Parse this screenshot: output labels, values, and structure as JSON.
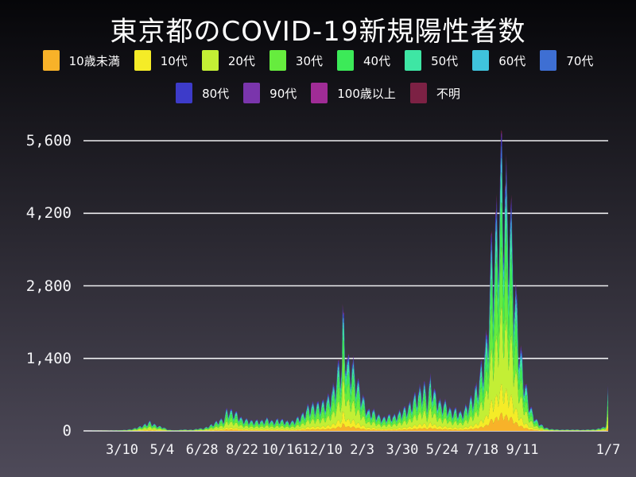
{
  "title": "東京都のCOVID-19新規陽性者数",
  "chart_data": {
    "type": "area",
    "stacked": true,
    "title": "東京都のCOVID-19新規陽性者数",
    "grid": "horizontal",
    "legend_position": "top-two-rows",
    "legend_rows": [
      8,
      4
    ],
    "ylim": [
      0,
      6000
    ],
    "y_ticks": [
      {
        "value": 0,
        "label": "0"
      },
      {
        "value": 1400,
        "label": "1,400"
      },
      {
        "value": 2800,
        "label": "2,800"
      },
      {
        "value": 4200,
        "label": "4,200"
      },
      {
        "value": 5600,
        "label": "5,600"
      }
    ],
    "x_ticks": [
      {
        "label": "3/10",
        "day": 53
      },
      {
        "label": "5/4",
        "day": 108
      },
      {
        "label": "6/28",
        "day": 163
      },
      {
        "label": "8/22",
        "day": 218
      },
      {
        "label": "10/16",
        "day": 273
      },
      {
        "label": "12/10",
        "day": 328
      },
      {
        "label": "2/3",
        "day": 383
      },
      {
        "label": "3/30",
        "day": 438
      },
      {
        "label": "5/24",
        "day": 493
      },
      {
        "label": "7/18",
        "day": 548
      },
      {
        "label": "9/11",
        "day": 603
      },
      {
        "label": "1/7",
        "day": 721
      }
    ],
    "days_total": 721,
    "series": [
      {
        "key": "age-under-10",
        "name": "10歳未満",
        "color": "#f8b229",
        "share": 0.06
      },
      {
        "key": "age-10s",
        "name": "10代",
        "color": "#f5ec27",
        "share": 0.095
      },
      {
        "key": "age-20s",
        "name": "20代",
        "color": "#c3ef35",
        "share": 0.255
      },
      {
        "key": "age-30s",
        "name": "30代",
        "color": "#66ec3e",
        "share": 0.2
      },
      {
        "key": "age-40s",
        "name": "40代",
        "color": "#3cea58",
        "share": 0.15
      },
      {
        "key": "age-50s",
        "name": "50代",
        "color": "#3ee6a4",
        "share": 0.1
      },
      {
        "key": "age-60s",
        "name": "60代",
        "color": "#3fc3dc",
        "share": 0.05
      },
      {
        "key": "age-70s",
        "name": "70代",
        "color": "#3e6fd3",
        "share": 0.04
      },
      {
        "key": "age-80s",
        "name": "80代",
        "color": "#3d3bc9",
        "share": 0.028
      },
      {
        "key": "age-90s",
        "name": "90代",
        "color": "#7a35ac",
        "share": 0.013
      },
      {
        "key": "age-100-plus",
        "name": "100歳以上",
        "color": "#a02c96",
        "share": 0.002
      },
      {
        "key": "unknown",
        "name": "不明",
        "color": "#7c2144",
        "share": 0.007
      }
    ],
    "daily_totals_keypoints": [
      [
        0,
        0
      ],
      [
        10,
        1
      ],
      [
        20,
        2
      ],
      [
        30,
        5
      ],
      [
        40,
        9
      ],
      [
        47,
        13
      ],
      [
        53,
        18
      ],
      [
        60,
        26
      ],
      [
        67,
        42
      ],
      [
        74,
        78
      ],
      [
        81,
        118
      ],
      [
        88,
        172
      ],
      [
        91,
        206
      ],
      [
        95,
        161
      ],
      [
        102,
        112
      ],
      [
        109,
        87
      ],
      [
        116,
        28
      ],
      [
        123,
        15
      ],
      [
        130,
        15
      ],
      [
        137,
        34
      ],
      [
        144,
        26
      ],
      [
        151,
        27
      ],
      [
        158,
        55
      ],
      [
        165,
        54
      ],
      [
        172,
        106
      ],
      [
        179,
        165
      ],
      [
        186,
        237
      ],
      [
        193,
        266
      ],
      [
        197,
        472
      ],
      [
        204,
        429
      ],
      [
        211,
        385
      ],
      [
        218,
        256
      ],
      [
        225,
        247
      ],
      [
        232,
        211
      ],
      [
        239,
        226
      ],
      [
        246,
        220
      ],
      [
        253,
        270
      ],
      [
        260,
        207
      ],
      [
        267,
        249
      ],
      [
        274,
        235
      ],
      [
        281,
        203
      ],
      [
        288,
        215
      ],
      [
        295,
        294
      ],
      [
        302,
        374
      ],
      [
        309,
        539
      ],
      [
        316,
        570
      ],
      [
        323,
        584
      ],
      [
        330,
        621
      ],
      [
        337,
        736
      ],
      [
        344,
        949
      ],
      [
        349,
        1337
      ],
      [
        355,
        1591
      ],
      [
        356,
        2520
      ],
      [
        358,
        2268
      ],
      [
        363,
        1502
      ],
      [
        370,
        1471
      ],
      [
        377,
        1064
      ],
      [
        384,
        734
      ],
      [
        391,
        434
      ],
      [
        398,
        445
      ],
      [
        405,
        340
      ],
      [
        412,
        279
      ],
      [
        419,
        335
      ],
      [
        426,
        323
      ],
      [
        433,
        394
      ],
      [
        440,
        475
      ],
      [
        447,
        545
      ],
      [
        454,
        729
      ],
      [
        461,
        861
      ],
      [
        468,
        1027
      ],
      [
        472,
        708
      ],
      [
        477,
        1121
      ],
      [
        484,
        772
      ],
      [
        491,
        602
      ],
      [
        498,
        614
      ],
      [
        505,
        436
      ],
      [
        512,
        467
      ],
      [
        519,
        388
      ],
      [
        526,
        534
      ],
      [
        533,
        716
      ],
      [
        540,
        950
      ],
      [
        547,
        1410
      ],
      [
        554,
        1979
      ],
      [
        558,
        3177
      ],
      [
        561,
        4058
      ],
      [
        565,
        4166
      ],
      [
        568,
        4566
      ],
      [
        574,
        5908
      ],
      [
        579,
        5386
      ],
      [
        582,
        5074
      ],
      [
        587,
        4704
      ],
      [
        593,
        3168
      ],
      [
        600,
        1834
      ],
      [
        607,
        1052
      ],
      [
        614,
        537
      ],
      [
        621,
        267
      ],
      [
        628,
        149
      ],
      [
        635,
        72
      ],
      [
        642,
        41
      ],
      [
        649,
        36
      ],
      [
        656,
        25
      ],
      [
        663,
        31
      ],
      [
        670,
        27
      ],
      [
        677,
        31
      ],
      [
        684,
        21
      ],
      [
        691,
        30
      ],
      [
        698,
        32
      ],
      [
        705,
        40
      ],
      [
        712,
        76
      ],
      [
        716,
        84
      ],
      [
        718,
        151
      ],
      [
        719,
        390
      ],
      [
        720,
        641
      ],
      [
        721,
        922
      ]
    ],
    "weekly_pattern": [
      1.0,
      0.97,
      0.8,
      0.58,
      0.66,
      0.84,
      0.94
    ],
    "noise": {
      "amp": 0.04,
      "freq": 2.9
    },
    "colors": {
      "background_top": "#060609",
      "background_bottom": "#4e4a59",
      "grid": "#ededf0",
      "text": "#f4f4f7"
    }
  }
}
